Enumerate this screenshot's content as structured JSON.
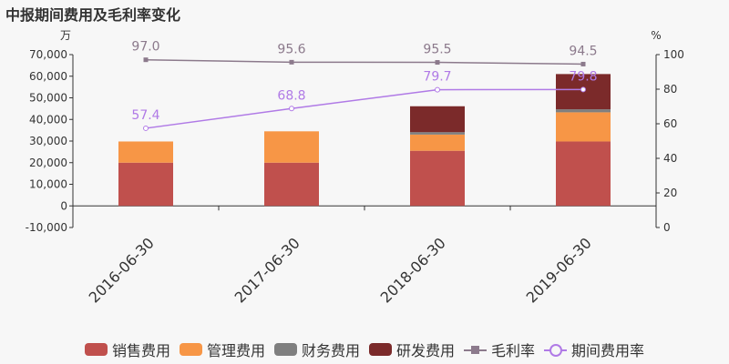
{
  "title": "中报期间费用及毛利率变化",
  "chart_data": {
    "type": "bar",
    "categories": [
      "2016-06-30",
      "2017-06-30",
      "2018-06-30",
      "2019-06-30"
    ],
    "left_axis": {
      "unit": "万",
      "ylim": [
        -10000,
        70000
      ],
      "ticks": [
        "-10,000",
        "0",
        "10,000",
        "20,000",
        "30,000",
        "40,000",
        "50,000",
        "60,000",
        "70,000"
      ]
    },
    "right_axis": {
      "unit": "%",
      "ylim": [
        0,
        100
      ],
      "ticks": [
        "0",
        "20",
        "40",
        "60",
        "80",
        "100"
      ]
    },
    "bar_series": [
      {
        "name": "销售费用",
        "color": "#c0504d",
        "values": [
          20000,
          20000,
          25500,
          29800
        ]
      },
      {
        "name": "管理费用",
        "color": "#f79646",
        "values": [
          9800,
          14500,
          7500,
          13500
        ]
      },
      {
        "name": "财务费用",
        "color": "#7f7f7f",
        "values": [
          0,
          0,
          1100,
          1400
        ]
      },
      {
        "name": "研发费用",
        "color": "#7b2a2a",
        "values": [
          0,
          0,
          12000,
          16300
        ]
      }
    ],
    "line_series": [
      {
        "name": "毛利率",
        "color": "#8c7a8c",
        "marker": "square",
        "values": [
          97.0,
          95.6,
          95.5,
          94.5
        ],
        "labels": [
          "97.0",
          "95.6",
          "95.5",
          "94.5"
        ]
      },
      {
        "name": "期间费用率",
        "color": "#b07ae6",
        "marker": "circle",
        "values": [
          57.4,
          68.8,
          79.7,
          79.8
        ],
        "labels": [
          "57.4",
          "68.8",
          "79.7",
          "79.8"
        ]
      }
    ],
    "legend_position": "bottom",
    "grid": false
  }
}
